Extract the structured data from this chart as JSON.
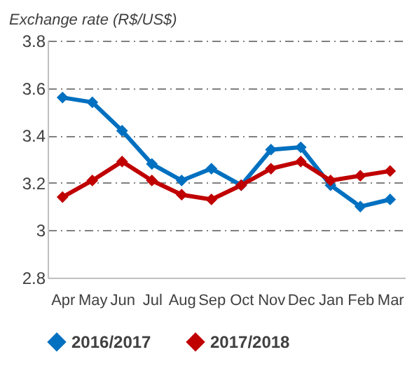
{
  "chart_data": {
    "type": "line",
    "ylabel": "Exchange rate (R$/US$)",
    "categories": [
      "Apr",
      "May",
      "Jun",
      "Jul",
      "Aug",
      "Sep",
      "Oct",
      "Nov",
      "Dec",
      "Jan",
      "Feb",
      "Mar"
    ],
    "series": [
      {
        "name": "2016/2017",
        "color": "#0070c0",
        "values": [
          3.56,
          3.54,
          3.42,
          3.28,
          3.21,
          3.26,
          3.19,
          3.34,
          3.35,
          3.19,
          3.1,
          3.13
        ]
      },
      {
        "name": "2017/2018",
        "color": "#c00000",
        "values": [
          3.14,
          3.21,
          3.29,
          3.21,
          3.15,
          3.13,
          3.19,
          3.26,
          3.29,
          3.21,
          3.23,
          3.25
        ]
      }
    ],
    "ylim": [
      2.8,
      3.8
    ],
    "yticks": [
      2.8,
      3,
      3.2,
      3.4,
      3.6,
      3.8
    ],
    "grid": "y",
    "legend": "bottom",
    "marker": "diamond",
    "line_style": "solid"
  }
}
